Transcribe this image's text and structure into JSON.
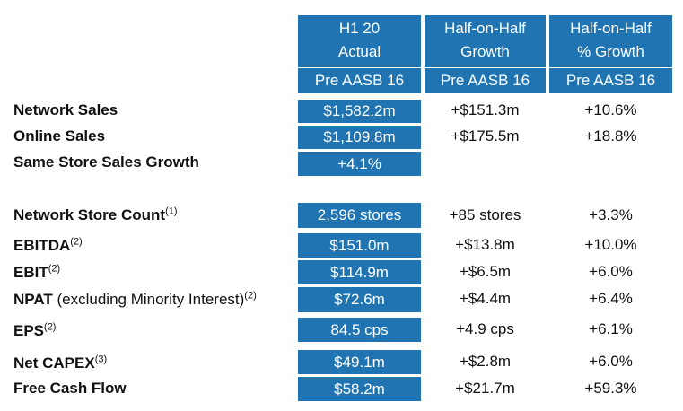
{
  "header": {
    "col1": {
      "line1": "H1 20",
      "line2": "Actual",
      "basis": "Pre AASB 16"
    },
    "col2": {
      "line1": "Half-on-Half",
      "line2": "Growth",
      "basis": "Pre AASB 16"
    },
    "col3": {
      "line1": "Half-on-Half",
      "line2": "% Growth",
      "basis": "Pre AASB 16"
    }
  },
  "rows": [
    {
      "label": "Network Sales",
      "note": "",
      "sup": "",
      "actual": "$1,582.2m",
      "growth": "+$151.3m",
      "pct": "+10.6%"
    },
    {
      "label": "Online Sales",
      "note": "",
      "sup": "",
      "actual": "$1,109.8m",
      "growth": "+$175.5m",
      "pct": "+18.8%"
    },
    {
      "label": "Same Store Sales Growth",
      "note": "",
      "sup": "",
      "actual": "+4.1%",
      "growth": "",
      "pct": ""
    },
    {
      "label": "Network Store Count",
      "note": "",
      "sup": "(1)",
      "actual": "2,596 stores",
      "growth": "+85 stores",
      "pct": "+3.3%"
    },
    {
      "label": "EBITDA",
      "note": "",
      "sup": "(2)",
      "actual": "$151.0m",
      "growth": "+$13.8m",
      "pct": "+10.0%"
    },
    {
      "label": "EBIT",
      "note": "",
      "sup": "(2)",
      "actual": "$114.9m",
      "growth": "+$6.5m",
      "pct": "+6.0%"
    },
    {
      "label": "NPAT",
      "note": " (excluding Minority Interest)",
      "sup": "(2)",
      "actual": "$72.6m",
      "growth": "+$4.4m",
      "pct": "+6.4%"
    },
    {
      "label": "EPS",
      "note": "",
      "sup": "(2)",
      "actual": "84.5 cps",
      "growth": "+4.9 cps",
      "pct": "+6.1%"
    },
    {
      "label": "Net CAPEX",
      "note": "",
      "sup": "(3)",
      "actual": "$49.1m",
      "growth": "+$2.8m",
      "pct": "+6.0%"
    },
    {
      "label": "Free Cash Flow",
      "note": "",
      "sup": "",
      "actual": "$58.2m",
      "growth": "+$21.7m",
      "pct": "+59.3%"
    }
  ],
  "colors": {
    "accent": "#1F74B1",
    "text": "#111111",
    "header_text": "#ffffff"
  }
}
